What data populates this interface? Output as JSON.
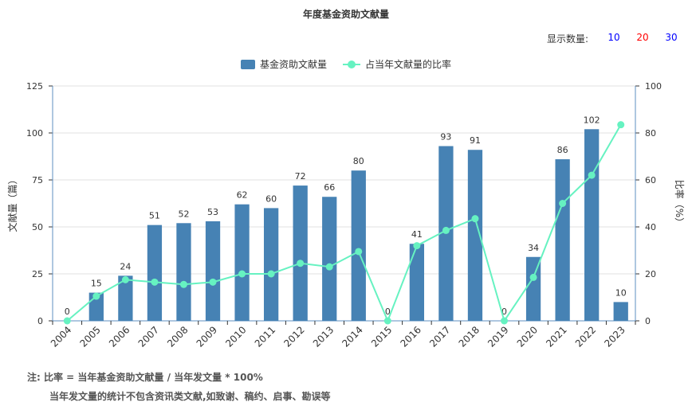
{
  "page": {
    "title": "年度基金资助文献量"
  },
  "display_count": {
    "label": "显示数量:",
    "options": [
      "10",
      "20",
      "30"
    ],
    "colors": [
      "#0000ff",
      "#ff0000",
      "#0000ff"
    ]
  },
  "notes": {
    "line1": "注:  比率 = 当年基金资助文献量 / 当年发文量 * 100%",
    "line2": "当年发文量的统计不包含资讯类文献,如致谢、稿约、启事、勘误等"
  },
  "chart_data": {
    "type": "bar",
    "title": "年度基金资助文献量",
    "categories": [
      "2004",
      "2005",
      "2006",
      "2007",
      "2008",
      "2009",
      "2010",
      "2011",
      "2012",
      "2013",
      "2014",
      "2015",
      "2016",
      "2017",
      "2018",
      "2019",
      "2020",
      "2021",
      "2022",
      "2023"
    ],
    "series": [
      {
        "name": "基金资助文献量",
        "type": "bar",
        "axis": "left",
        "color": "#4682b4",
        "values": [
          0,
          15,
          24,
          51,
          52,
          53,
          62,
          60,
          72,
          66,
          80,
          0,
          41,
          93,
          91,
          0,
          34,
          86,
          102,
          10
        ]
      },
      {
        "name": "占当年文献量的比率",
        "type": "line",
        "axis": "right",
        "color": "#66f2c1",
        "values": [
          0,
          10.5,
          17.5,
          16.5,
          15.5,
          16.5,
          20,
          20,
          24.5,
          23,
          29.5,
          0,
          32,
          38.5,
          43.5,
          0,
          18.5,
          50,
          62,
          83.5
        ]
      }
    ],
    "ylabel": "文献量（篇）",
    "y2label": "比率（%）",
    "ylim": [
      0,
      125
    ],
    "yticks": [
      0,
      25,
      50,
      75,
      100,
      125
    ],
    "y2lim": [
      0,
      100
    ],
    "y2ticks": [
      0,
      20,
      40,
      60,
      80,
      100
    ],
    "grid": true,
    "legend": "top-center"
  }
}
